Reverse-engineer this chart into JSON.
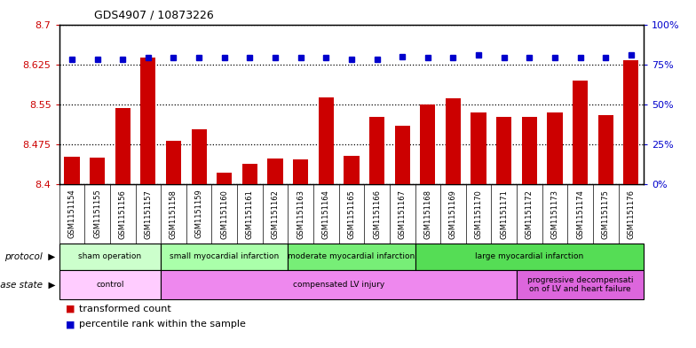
{
  "title": "GDS4907 / 10873226",
  "samples": [
    "GSM1151154",
    "GSM1151155",
    "GSM1151156",
    "GSM1151157",
    "GSM1151158",
    "GSM1151159",
    "GSM1151160",
    "GSM1151161",
    "GSM1151162",
    "GSM1151163",
    "GSM1151164",
    "GSM1151165",
    "GSM1151166",
    "GSM1151167",
    "GSM1151168",
    "GSM1151169",
    "GSM1151170",
    "GSM1151171",
    "GSM1151172",
    "GSM1151173",
    "GSM1151174",
    "GSM1151175",
    "GSM1151176"
  ],
  "transformed_count": [
    8.452,
    8.451,
    8.543,
    8.638,
    8.482,
    8.503,
    8.422,
    8.438,
    8.448,
    8.447,
    8.563,
    8.453,
    8.527,
    8.51,
    8.55,
    8.562,
    8.535,
    8.527,
    8.527,
    8.535,
    8.595,
    8.53,
    8.632
  ],
  "percentile_rank": [
    78,
    78,
    78,
    79,
    79,
    79,
    79,
    79,
    79,
    79,
    79,
    78,
    78,
    80,
    79,
    79,
    81,
    79,
    79,
    79,
    79,
    79,
    81
  ],
  "ylim_left": [
    8.4,
    8.7
  ],
  "ylim_right": [
    0,
    100
  ],
  "yticks_left": [
    8.4,
    8.475,
    8.55,
    8.625,
    8.7
  ],
  "ytick_labels_left": [
    "8.4",
    "8.475",
    "8.55",
    "8.625",
    "8.7"
  ],
  "yticks_right": [
    0,
    25,
    50,
    75,
    100
  ],
  "ytick_labels_right": [
    "0%",
    "25%",
    "50%",
    "75%",
    "100%"
  ],
  "bar_color": "#cc0000",
  "square_color": "#0000cc",
  "protocol_groups": [
    {
      "label": "sham operation",
      "start": 0,
      "end": 4,
      "color": "#ccffcc"
    },
    {
      "label": "small myocardial infarction",
      "start": 4,
      "end": 9,
      "color": "#aaffaa"
    },
    {
      "label": "moderate myocardial infarction",
      "start": 9,
      "end": 14,
      "color": "#77ee77"
    },
    {
      "label": "large myocardial infarction",
      "start": 14,
      "end": 23,
      "color": "#55dd55"
    }
  ],
  "disease_groups": [
    {
      "label": "control",
      "start": 0,
      "end": 4,
      "color": "#ffccff"
    },
    {
      "label": "compensated LV injury",
      "start": 4,
      "end": 18,
      "color": "#ee88ee"
    },
    {
      "label": "progressive decompensati\non of LV and heart failure",
      "start": 18,
      "end": 23,
      "color": "#dd66dd"
    }
  ],
  "dotted_line_color": "#000000",
  "left_tick_color": "#cc0000",
  "right_tick_color": "#0000cc",
  "plot_bg_color": "#ffffff",
  "xlabel_bg_color": "#cccccc"
}
